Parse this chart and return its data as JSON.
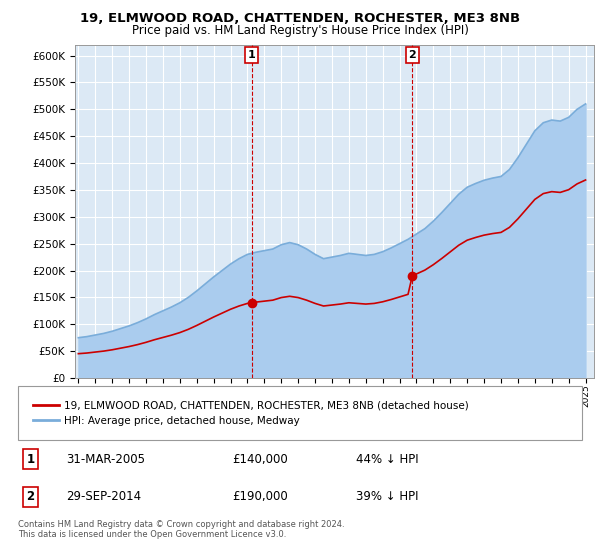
{
  "title1": "19, ELMWOOD ROAD, CHATTENDEN, ROCHESTER, ME3 8NB",
  "title2": "Price paid vs. HM Land Registry's House Price Index (HPI)",
  "ylim": [
    0,
    620000
  ],
  "yticks": [
    0,
    50000,
    100000,
    150000,
    200000,
    250000,
    300000,
    350000,
    400000,
    450000,
    500000,
    550000,
    600000
  ],
  "ytick_labels": [
    "£0",
    "£50K",
    "£100K",
    "£150K",
    "£200K",
    "£250K",
    "£300K",
    "£350K",
    "£400K",
    "£450K",
    "£500K",
    "£550K",
    "£600K"
  ],
  "background_color": "#ffffff",
  "plot_bg_color": "#dce9f5",
  "grid_color": "#ffffff",
  "legend_entry1": "19, ELMWOOD ROAD, CHATTENDEN, ROCHESTER, ME3 8NB (detached house)",
  "legend_entry2": "HPI: Average price, detached house, Medway",
  "red_color": "#cc0000",
  "blue_color": "#7aadda",
  "blue_fill_color": "#aaccee",
  "transaction1_x": 2005.25,
  "transaction1_y": 140000,
  "transaction1_label": "1",
  "transaction2_x": 2014.75,
  "transaction2_y": 190000,
  "transaction2_label": "2",
  "footer": "Contains HM Land Registry data © Crown copyright and database right 2024.\nThis data is licensed under the Open Government Licence v3.0.",
  "table_rows": [
    [
      "1",
      "31-MAR-2005",
      "£140,000",
      "44% ↓ HPI"
    ],
    [
      "2",
      "29-SEP-2014",
      "£190,000",
      "39% ↓ HPI"
    ]
  ],
  "years_hpi": [
    1995,
    1995.5,
    1996,
    1996.5,
    1997,
    1997.5,
    1998,
    1998.5,
    1999,
    1999.5,
    2000,
    2000.5,
    2001,
    2001.5,
    2002,
    2002.5,
    2003,
    2003.5,
    2004,
    2004.5,
    2005,
    2005.5,
    2006,
    2006.5,
    2007,
    2007.5,
    2008,
    2008.5,
    2009,
    2009.5,
    2010,
    2010.5,
    2011,
    2011.5,
    2012,
    2012.5,
    2013,
    2013.5,
    2014,
    2014.5,
    2015,
    2015.5,
    2016,
    2016.5,
    2017,
    2017.5,
    2018,
    2018.5,
    2019,
    2019.5,
    2020,
    2020.5,
    2021,
    2021.5,
    2022,
    2022.5,
    2023,
    2023.5,
    2024,
    2024.5,
    2025
  ],
  "hpi_values": [
    75000,
    77000,
    80000,
    83000,
    87000,
    92000,
    97000,
    103000,
    110000,
    118000,
    125000,
    132000,
    140000,
    150000,
    162000,
    175000,
    188000,
    200000,
    212000,
    222000,
    230000,
    234000,
    237000,
    240000,
    248000,
    252000,
    248000,
    240000,
    230000,
    222000,
    225000,
    228000,
    232000,
    230000,
    228000,
    230000,
    235000,
    242000,
    250000,
    258000,
    268000,
    278000,
    292000,
    308000,
    325000,
    342000,
    355000,
    362000,
    368000,
    372000,
    375000,
    388000,
    410000,
    435000,
    460000,
    475000,
    480000,
    478000,
    485000,
    500000,
    510000
  ],
  "xlim_min": 1994.8,
  "xlim_max": 2025.5
}
